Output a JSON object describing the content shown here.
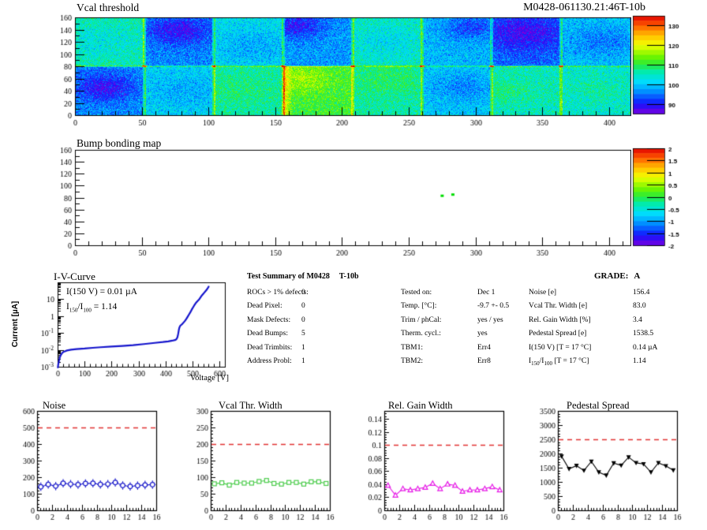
{
  "header": {
    "left_title": "Vcal threshold",
    "right_title": "M0428-061130.21:46T-10b"
  },
  "summary": {
    "heading": "Test Summary of M0428",
    "heading_suffix": "T-10b",
    "grade_label": "GRADE:",
    "grade_value": "A",
    "defects": [
      {
        "label": "ROCs > 1% defects:",
        "value": "0"
      },
      {
        "label": "Dead Pixel:",
        "value": "0"
      },
      {
        "label": "Mask Defects:",
        "value": "0"
      },
      {
        "label": "Dead Bumps:",
        "value": "5"
      },
      {
        "label": "Dead Trimbits:",
        "value": "1"
      },
      {
        "label": "Address Probl:",
        "value": "1"
      }
    ],
    "conditions": [
      {
        "label": "Tested on:",
        "value": "Dec 1"
      },
      {
        "label": "Temp. [°C]:",
        "value": "-9.7 +- 0.5"
      },
      {
        "label": "Trim / phCal:",
        "value": "yes / yes"
      },
      {
        "label": "Therm. cycl.:",
        "value": "yes"
      },
      {
        "label": "TBM1:",
        "value": "Err4"
      },
      {
        "label": "TBM2:",
        "value": "Err8"
      }
    ],
    "results": [
      {
        "label": "Noise [e]",
        "value": "156.4"
      },
      {
        "label": "Vcal Thr. Width [e]",
        "value": "83.0"
      },
      {
        "label": "Rel. Gain Width [%]",
        "value": "3.4"
      },
      {
        "label": "Pedestal Spread [e]",
        "value": "1538.5"
      },
      {
        "label": "I(150 V) [T = 17 °C]",
        "value": "0.14 µA"
      },
      {
        "label_parts": {
          "base": "I",
          "sub1": "150",
          "mid": "/I",
          "sub2": "100",
          "rest": " [T = 17 °C]"
        },
        "value": "1.14"
      }
    ]
  },
  "iv_annotations": {
    "line1": "I(150 V) = 0.01 µA",
    "ratio": {
      "base": "I",
      "sub1": "150",
      "mid": "/I",
      "sub2": "100",
      "rest": " =  1.14"
    }
  },
  "chart_data": [
    {
      "type": "heatmap",
      "title": "Vcal threshold",
      "x_range": [
        0,
        416
      ],
      "y_range": [
        0,
        160
      ],
      "x_ticks": [
        0,
        50,
        100,
        150,
        200,
        250,
        300,
        350,
        400
      ],
      "y_ticks": [
        0,
        20,
        40,
        60,
        80,
        100,
        120,
        140,
        160
      ],
      "z_range": [
        85,
        135
      ],
      "z_ticks": [
        90,
        100,
        110,
        120,
        130
      ],
      "n_tile_cols": 8,
      "n_tile_rows": 2,
      "tile_size": 52,
      "noise_sigma": 4.5,
      "tiles": {
        "top": [
          106,
          96,
          102,
          97,
          105,
          99,
          94,
          100
        ],
        "bottom": [
          96,
          101,
          106,
          111,
          106,
          100,
          105,
          104
        ]
      },
      "blobs": {
        "top": [
          {
            "bx": 20,
            "by": 40,
            "a": -3,
            "s": 22
          },
          {
            "bx": 26,
            "by": 58,
            "a": -8,
            "s": 16
          },
          {
            "bx": 30,
            "by": 30,
            "a": -4,
            "s": 20
          },
          {
            "bx": 10,
            "by": 66,
            "a": -8,
            "s": 14
          },
          {
            "bx": 25,
            "by": 40,
            "a": -3,
            "s": 20
          },
          {
            "bx": 38,
            "by": 64,
            "a": -7,
            "s": 15
          },
          {
            "bx": 24,
            "by": 55,
            "a": -7,
            "s": 18
          },
          {
            "bx": 30,
            "by": 40,
            "a": -5,
            "s": 18
          }
        ],
        "bottom": [
          {
            "bx": 22,
            "by": 45,
            "a": -8,
            "s": 15
          },
          {
            "bx": 30,
            "by": 40,
            "a": -3,
            "s": 18
          },
          {
            "bx": 20,
            "by": 40,
            "a": 2,
            "s": 20
          },
          {
            "bx": 14,
            "by": 60,
            "a": 5,
            "s": 16
          },
          {
            "bx": 26,
            "by": 60,
            "a": 3,
            "s": 18
          },
          {
            "bx": 30,
            "by": 45,
            "a": -4,
            "s": 16
          },
          {
            "bx": 10,
            "by": 40,
            "a": 3,
            "s": 14
          },
          {
            "bx": 28,
            "by": 40,
            "a": 2,
            "s": 18
          }
        ]
      }
    },
    {
      "type": "heatmap",
      "title": "Bump bonding map",
      "x_range": [
        0,
        416
      ],
      "y_range": [
        0,
        160
      ],
      "x_ticks": [
        0,
        50,
        100,
        150,
        200,
        250,
        300,
        350,
        400
      ],
      "y_ticks": [
        0,
        20,
        40,
        60,
        80,
        100,
        120,
        140,
        160
      ],
      "z_range": [
        -2,
        2
      ],
      "z_ticks": [
        2,
        1.5,
        1,
        0.5,
        0,
        -0.5,
        -1,
        -1.5,
        -2
      ],
      "defect_points": [
        {
          "x": 275,
          "y": 83
        },
        {
          "x": 283,
          "y": 85
        }
      ],
      "point_color": "#00dd00"
    },
    {
      "type": "line",
      "title": "I-V-Curve",
      "xlabel": "Voltage [V]",
      "ylabel": "Current [µA]",
      "xlim": [
        0,
        620
      ],
      "x_ticks": [
        0,
        100,
        200,
        300,
        400,
        500,
        600
      ],
      "ylog": true,
      "y_exp_range": [
        -3,
        2
      ],
      "color": "#1414cc",
      "points": [
        [
          1,
          0.0009
        ],
        [
          3,
          0.0016
        ],
        [
          5,
          0.0022
        ],
        [
          8,
          0.0035
        ],
        [
          12,
          0.005
        ],
        [
          18,
          0.0068
        ],
        [
          25,
          0.008
        ],
        [
          35,
          0.0092
        ],
        [
          50,
          0.0103
        ],
        [
          70,
          0.0112
        ],
        [
          100,
          0.012
        ],
        [
          130,
          0.0132
        ],
        [
          160,
          0.0143
        ],
        [
          200,
          0.0158
        ],
        [
          240,
          0.0172
        ],
        [
          280,
          0.019
        ],
        [
          320,
          0.022
        ],
        [
          360,
          0.026
        ],
        [
          390,
          0.029
        ],
        [
          410,
          0.032
        ],
        [
          425,
          0.035
        ],
        [
          435,
          0.038
        ],
        [
          440,
          0.042
        ],
        [
          444,
          0.055
        ],
        [
          447,
          0.09
        ],
        [
          449,
          0.14
        ],
        [
          451,
          0.2
        ],
        [
          454,
          0.26
        ],
        [
          458,
          0.3
        ],
        [
          462,
          0.34
        ],
        [
          467,
          0.42
        ],
        [
          472,
          0.52
        ],
        [
          477,
          0.68
        ],
        [
          482,
          0.92
        ],
        [
          487,
          1.25
        ],
        [
          492,
          1.7
        ],
        [
          497,
          2.4
        ],
        [
          502,
          3.3
        ],
        [
          506,
          4.2
        ],
        [
          510,
          5.2
        ],
        [
          514,
          6.5
        ],
        [
          518,
          7.6
        ],
        [
          522,
          8.8
        ],
        [
          526,
          10.5
        ],
        [
          530,
          13
        ],
        [
          535,
          17
        ],
        [
          540,
          21
        ],
        [
          544,
          25
        ],
        [
          548,
          30
        ],
        [
          551,
          34
        ],
        [
          554,
          40
        ],
        [
          557,
          47
        ],
        [
          560,
          56
        ]
      ]
    },
    {
      "type": "scatter",
      "title": "Noise",
      "xlim": [
        0,
        16
      ],
      "x_ticks": [
        0,
        2,
        4,
        6,
        8,
        10,
        12,
        14,
        16
      ],
      "ylim": [
        0,
        600
      ],
      "y_ticks": [
        0,
        100,
        200,
        300,
        400,
        500,
        600
      ],
      "y_minor": 20,
      "threshold": 500,
      "threshold_color": "#e03333",
      "color": "#2222cc",
      "marker": "circle_err",
      "err": 11,
      "x_start": 0.5,
      "x_step": 1,
      "values": [
        142,
        156,
        146,
        163,
        158,
        155,
        162,
        163,
        156,
        158,
        168,
        150,
        144,
        149,
        153,
        155
      ]
    },
    {
      "type": "scatter",
      "title": "Vcal Thr. Width",
      "xlim": [
        0,
        16
      ],
      "x_ticks": [
        0,
        2,
        4,
        6,
        8,
        10,
        12,
        14,
        16
      ],
      "ylim": [
        0,
        300
      ],
      "y_ticks": [
        0,
        50,
        100,
        150,
        200,
        250,
        300
      ],
      "y_minor": 10,
      "threshold": 200,
      "threshold_color": "#e03333",
      "color": "#4ccc4c",
      "marker": "square",
      "x_start": 0.5,
      "x_step": 1,
      "values": [
        80,
        83,
        76,
        84,
        82,
        82,
        87,
        90,
        81,
        79,
        84,
        84,
        79,
        86,
        86,
        81
      ]
    },
    {
      "type": "scatter",
      "title": "Rel. Gain Width",
      "xlim": [
        0,
        16
      ],
      "x_ticks": [
        0,
        2,
        4,
        6,
        8,
        10,
        12,
        14,
        16
      ],
      "ylim": [
        0,
        0.152
      ],
      "y_ticks": [
        0,
        0.02,
        0.04,
        0.06,
        0.08,
        0.1,
        0.12,
        0.14
      ],
      "y_minor": 0.004,
      "threshold": 0.1,
      "threshold_color": "#e03333",
      "color": "#e619e6",
      "marker": "tri_open",
      "x_start": 0.5,
      "x_step": 1,
      "values": [
        0.038,
        0.023,
        0.033,
        0.031,
        0.033,
        0.035,
        0.041,
        0.033,
        0.04,
        0.038,
        0.029,
        0.031,
        0.031,
        0.033,
        0.036,
        0.031
      ]
    },
    {
      "type": "scatter",
      "title": "Pedestal Spread",
      "xlim": [
        0,
        16
      ],
      "x_ticks": [
        0,
        2,
        4,
        6,
        8,
        10,
        12,
        14,
        16
      ],
      "ylim": [
        0,
        3500
      ],
      "y_ticks": [
        0,
        500,
        1000,
        1500,
        2000,
        2500,
        3000,
        3500
      ],
      "y_minor": 100,
      "threshold": 2500,
      "threshold_color": "#e03333",
      "color": "#000000",
      "marker": "tri_fill",
      "x_start": 0.5,
      "x_step": 1,
      "values": [
        1900,
        1460,
        1570,
        1400,
        1720,
        1340,
        1230,
        1660,
        1580,
        1870,
        1670,
        1630,
        1340,
        1670,
        1560,
        1410
      ]
    }
  ]
}
